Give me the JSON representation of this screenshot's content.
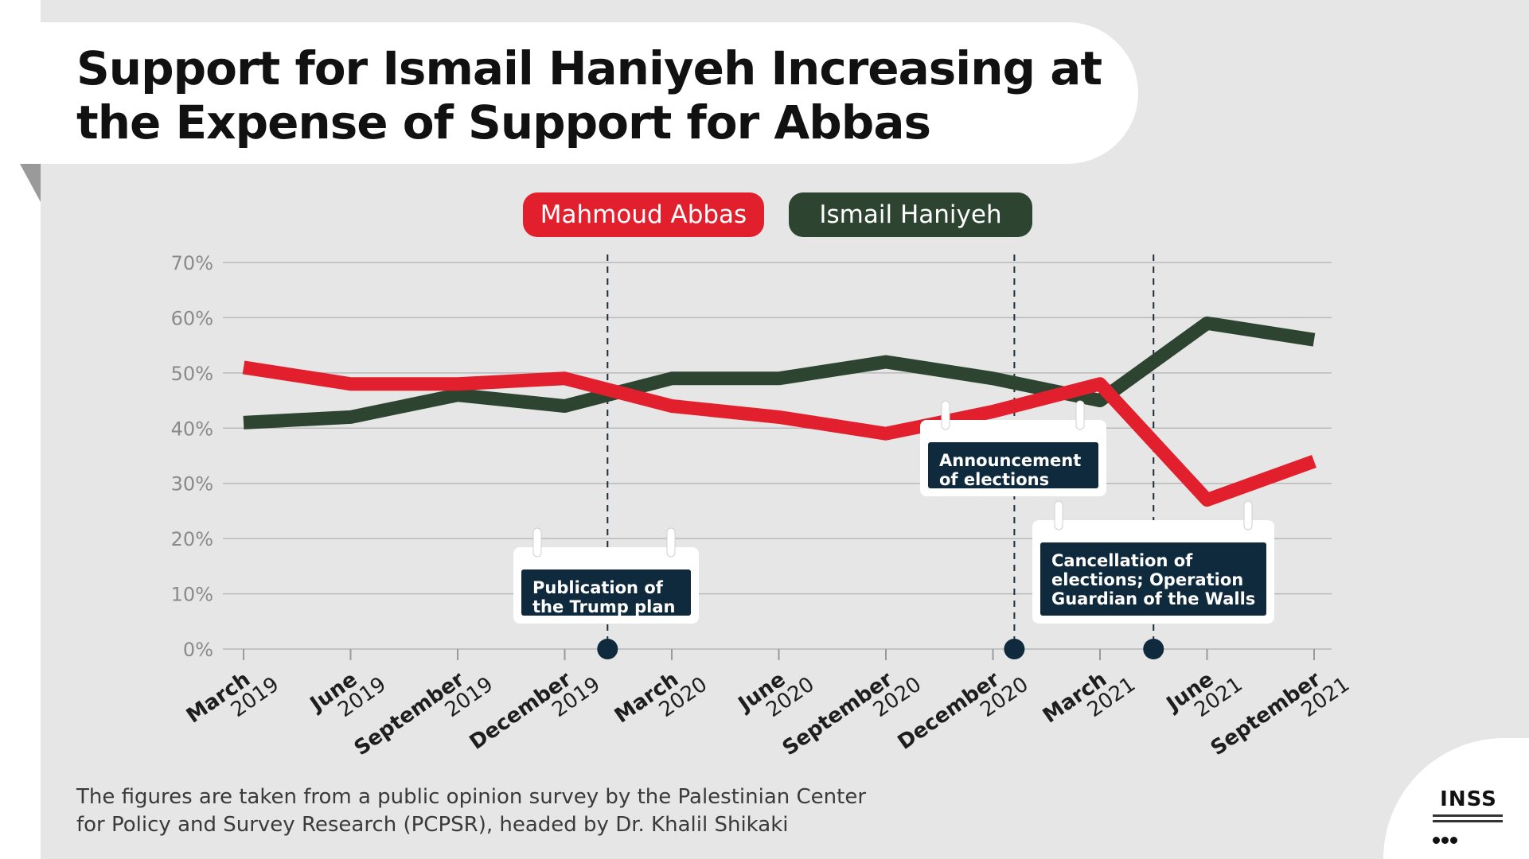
{
  "title": "Support for Ismail Haniyeh Increasing at the Expense of Support for Abbas",
  "footnote": {
    "line1": "The figures are taken from a public opinion survey by the Palestinian Center",
    "line2": "for Policy and Survey Research (PCPSR), headed by Dr. Khalil Shikaki"
  },
  "logo": {
    "text": "INSS"
  },
  "colors": {
    "abbas": "#e21f2c",
    "haniyeh": "#2d4430",
    "callout": "#0f2a3c",
    "grid": "#b9b9b9",
    "tick_label": "#8a8a8a"
  },
  "chart_data": {
    "type": "line",
    "title": "Support for Ismail Haniyeh Increasing at the Expense of Support for Abbas",
    "xlabel": "",
    "ylabel": "",
    "ylim": [
      0,
      70
    ],
    "y_ticks": [
      "0%",
      "10%",
      "20%",
      "30%",
      "40%",
      "50%",
      "60%",
      "70%"
    ],
    "y_tick_values": [
      0,
      10,
      20,
      30,
      40,
      50,
      60,
      70
    ],
    "grid": true,
    "legend_position": "top-center",
    "categories": [
      {
        "month": "March",
        "year": "2019"
      },
      {
        "month": "June",
        "year": "2019"
      },
      {
        "month": "September",
        "year": "2019"
      },
      {
        "month": "December",
        "year": "2019"
      },
      {
        "month": "March",
        "year": "2020"
      },
      {
        "month": "June",
        "year": "2020"
      },
      {
        "month": "September",
        "year": "2020"
      },
      {
        "month": "December",
        "year": "2020"
      },
      {
        "month": "March",
        "year": "2021"
      },
      {
        "month": "June",
        "year": "2021"
      },
      {
        "month": "September",
        "year": "2021"
      }
    ],
    "series": [
      {
        "name": "Mahmoud Abbas",
        "color": "#e21f2c",
        "values": [
          51,
          48,
          48,
          49,
          44,
          42,
          39,
          43,
          48,
          27,
          34
        ]
      },
      {
        "name": "Ismail Haniyeh",
        "color": "#2d4430",
        "values": [
          41,
          42,
          46,
          44,
          49,
          49,
          52,
          49,
          45,
          59,
          56
        ]
      }
    ],
    "annotations": [
      {
        "x_index": 3.4,
        "text": [
          "Publication of",
          "the Trump plan"
        ]
      },
      {
        "x_index": 7.2,
        "text": [
          "Announcement",
          "of elections"
        ]
      },
      {
        "x_index": 8.5,
        "text": [
          "Cancellation of",
          "elections; Operation",
          "Guardian of the Walls"
        ]
      }
    ]
  }
}
